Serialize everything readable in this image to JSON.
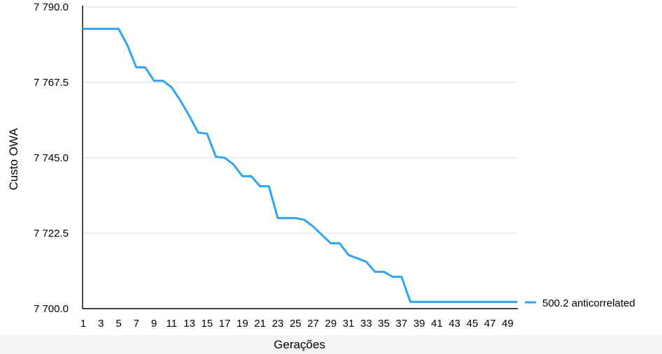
{
  "chart_data": {
    "type": "line",
    "xlabel": "Gerações",
    "ylabel": "Custo OWA",
    "ylim": [
      7700,
      7790
    ],
    "yticks": [
      "7 700.0",
      "7 722.5",
      "7 745.0",
      "7 767.5",
      "7 790.0"
    ],
    "ytick_values": [
      7700,
      7722.5,
      7745,
      7767.5,
      7790
    ],
    "x": [
      1,
      2,
      3,
      4,
      5,
      6,
      7,
      8,
      9,
      10,
      11,
      12,
      13,
      14,
      15,
      16,
      17,
      18,
      19,
      20,
      21,
      22,
      23,
      24,
      25,
      26,
      27,
      28,
      29,
      30,
      31,
      32,
      33,
      34,
      35,
      36,
      37,
      38,
      39,
      40,
      41,
      42,
      43,
      44,
      45,
      46,
      47,
      48,
      49,
      50
    ],
    "xticks": [
      "1",
      "3",
      "5",
      "7",
      "9",
      "11",
      "13",
      "15",
      "17",
      "19",
      "21",
      "23",
      "25",
      "27",
      "29",
      "31",
      "33",
      "35",
      "37",
      "39",
      "41",
      "43",
      "45",
      "47",
      "49"
    ],
    "grid": true,
    "legend_position": "right",
    "series": [
      {
        "name": "500.2 anticorrelated",
        "color": "#2fa4f2",
        "values": [
          7783.5,
          7783.5,
          7783.5,
          7783.5,
          7783.5,
          7778.5,
          7772,
          7772,
          7768,
          7768,
          7766,
          7762,
          7757.5,
          7752.5,
          7752.2,
          7745.3,
          7745,
          7743,
          7739.5,
          7739.5,
          7736.5,
          7736.5,
          7727,
          7727,
          7727,
          7726.5,
          7724.5,
          7722,
          7719.5,
          7719.5,
          7716,
          7715,
          7714,
          7711,
          7711,
          7709.5,
          7709.5,
          7702,
          7702,
          7702,
          7702,
          7702,
          7702,
          7702,
          7702,
          7702,
          7702,
          7702,
          7702,
          7702
        ]
      }
    ]
  }
}
